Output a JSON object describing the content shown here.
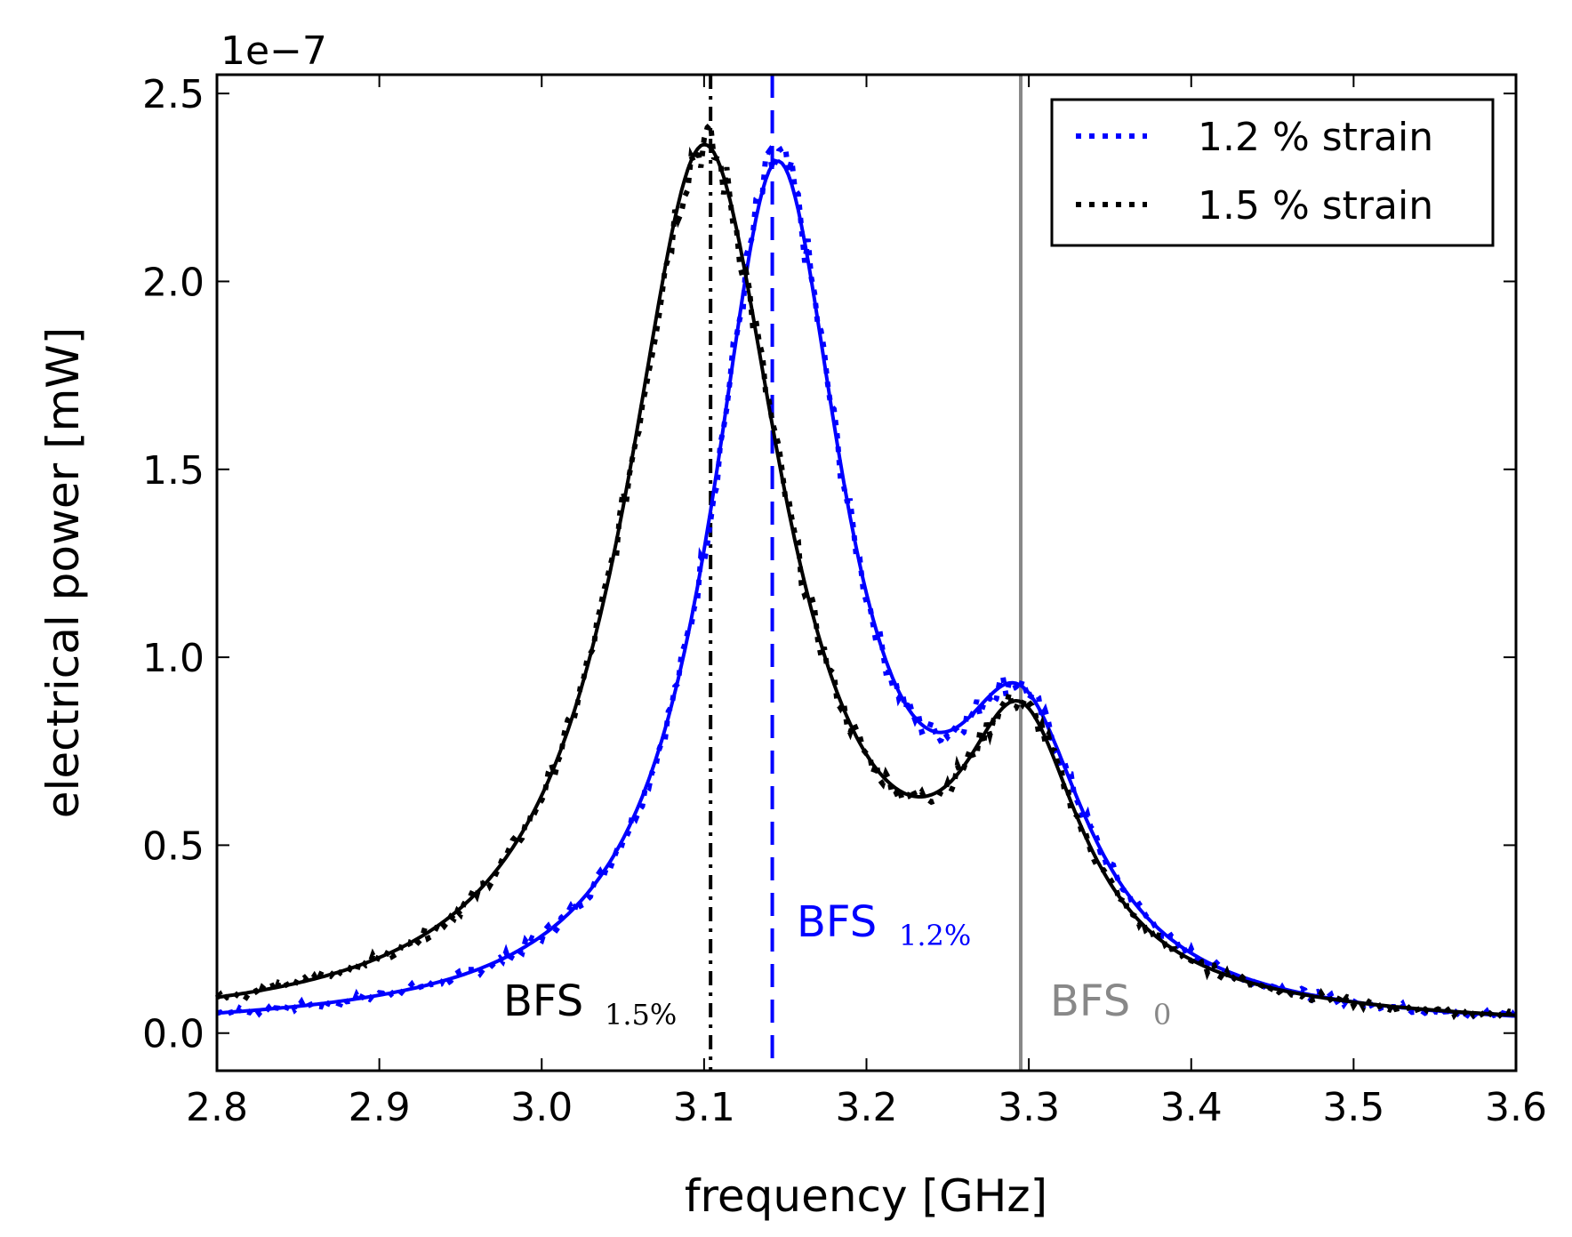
{
  "chart_data": {
    "type": "line",
    "xlabel": "frequency [GHz]",
    "ylabel": "electrical power [mW]",
    "y_offset_label": "1e−7",
    "xlim": [
      2.8,
      3.6
    ],
    "ylim": [
      -0.1,
      2.55
    ],
    "x_ticks": [
      "2.8",
      "2.9",
      "3.0",
      "3.1",
      "3.2",
      "3.3",
      "3.4",
      "3.5",
      "3.6"
    ],
    "y_ticks": [
      "0.0",
      "0.5",
      "1.0",
      "1.5",
      "2.0",
      "2.5"
    ],
    "legend_position": "top-right",
    "series": [
      {
        "name": "1.2 % strain",
        "color": "#0000ff",
        "style": "dotted",
        "fit": {
          "peaks": [
            {
              "center": 3.145,
              "amplitude": 2.25,
              "width": 0.05
            },
            {
              "center": 3.295,
              "amplitude": 0.7,
              "width": 0.05
            }
          ]
        }
      },
      {
        "name": "1.5 % strain",
        "color": "#000000",
        "style": "dotted",
        "fit": {
          "peaks": [
            {
              "center": 3.1,
              "amplitude": 2.33,
              "width": 0.06
            },
            {
              "center": 3.295,
              "amplitude": 0.68,
              "width": 0.045
            }
          ]
        }
      }
    ],
    "vertical_lines": [
      {
        "x": 3.104,
        "color": "#000000",
        "style": "dashdot",
        "label_main": "BFS",
        "label_sub": "1.5%"
      },
      {
        "x": 3.142,
        "color": "#0000ff",
        "style": "dashed",
        "label_main": "BFS",
        "label_sub": "1.2%"
      },
      {
        "x": 3.295,
        "color": "#888888",
        "style": "solid",
        "label_main": "BFS",
        "label_sub": "0"
      }
    ]
  }
}
